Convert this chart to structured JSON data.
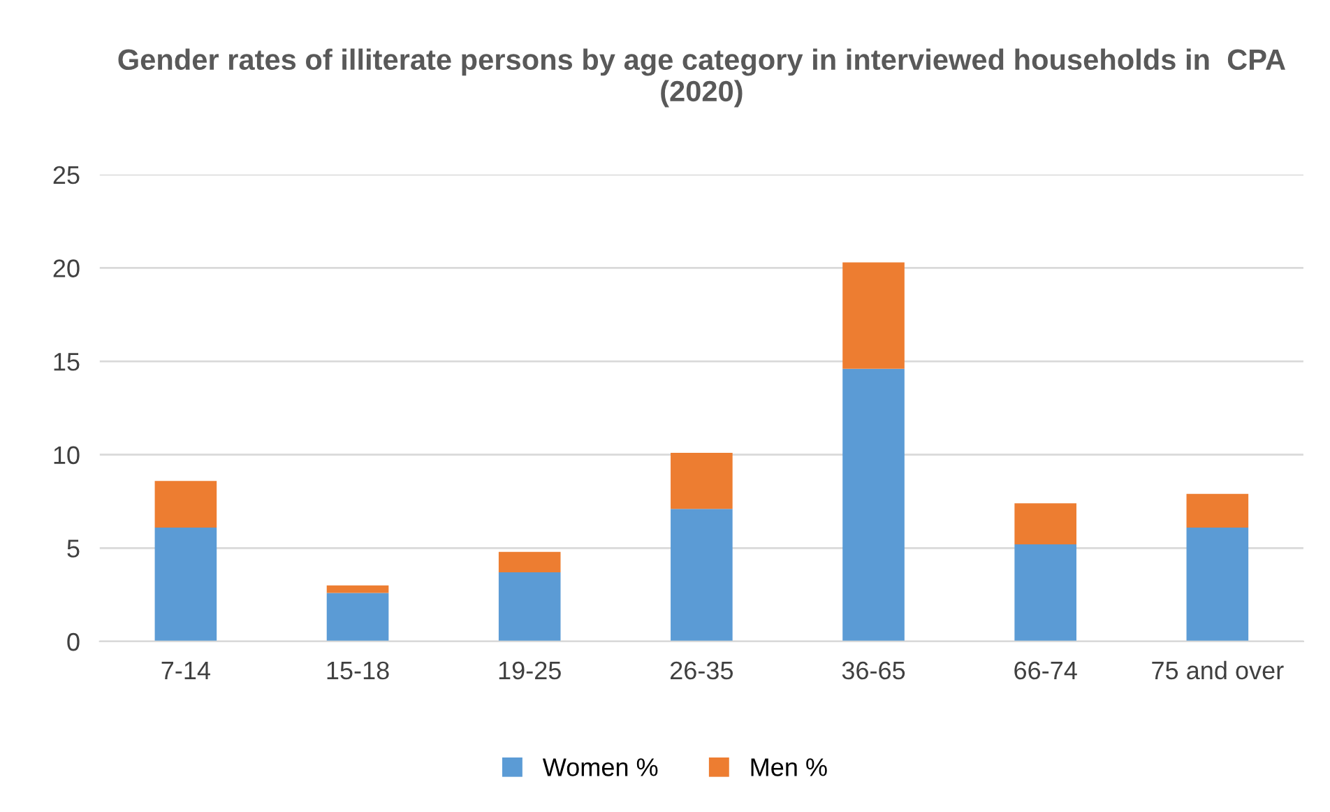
{
  "chart_data": {
    "type": "bar",
    "stacked": true,
    "title": "Gender rates of illiterate persons by age category in interviewed households in  CPA (2020)",
    "categories": [
      "7-14",
      "15-18",
      "19-25",
      "26-35",
      "36-65",
      "66-74",
      "75 and over"
    ],
    "series": [
      {
        "name": "Women %",
        "color": "#5b9bd5",
        "values": [
          6.1,
          2.6,
          3.7,
          7.1,
          14.6,
          5.2,
          6.1
        ]
      },
      {
        "name": "Men %",
        "color": "#ed7d31",
        "values": [
          2.5,
          0.4,
          1.1,
          3.0,
          5.7,
          2.2,
          1.8
        ]
      }
    ],
    "ylim": [
      0,
      25
    ],
    "yticks": [
      0,
      5,
      10,
      15,
      20,
      25
    ],
    "grid": "y",
    "legend": "bottom"
  }
}
